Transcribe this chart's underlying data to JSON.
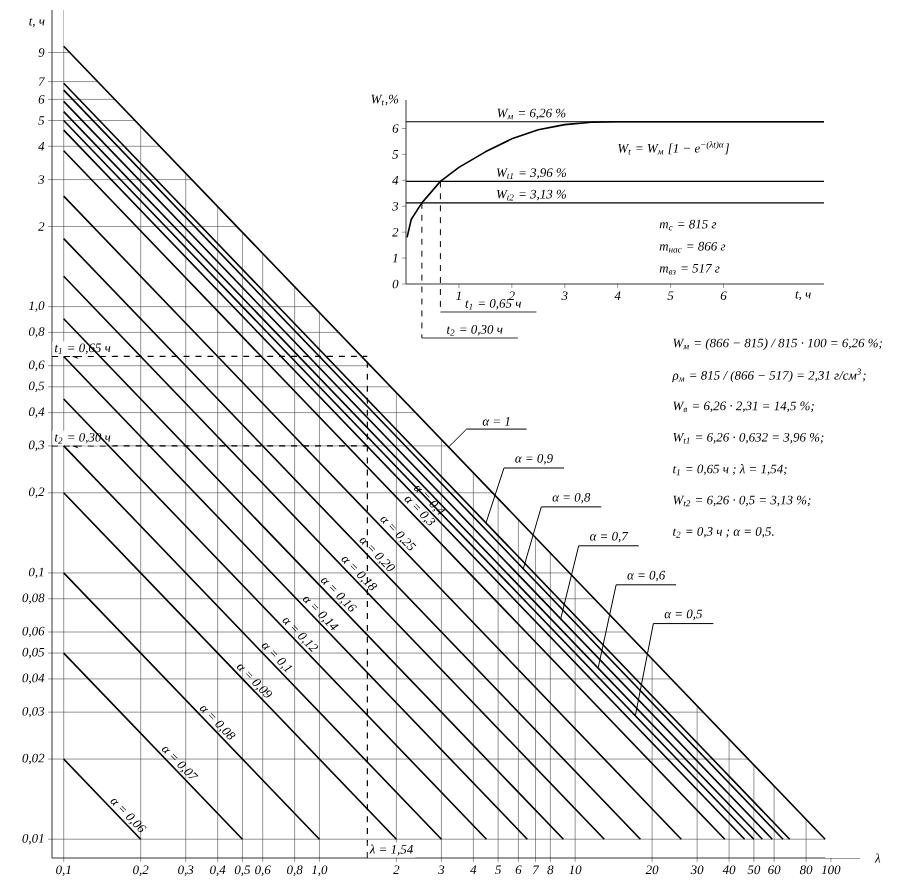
{
  "chart_data": [
    {
      "type": "line",
      "log": "xy",
      "xlabel": "λ",
      "ylabel": "t, ч",
      "xlim": [
        0.09,
        130
      ],
      "ylim": [
        0.0085,
        13
      ],
      "grid": true,
      "marker": "none",
      "line_style": "solid",
      "xticks": [
        {
          "value": 0.1,
          "label": "0,1"
        },
        {
          "value": 0.2,
          "label": "0,2"
        },
        {
          "value": 0.3,
          "label": "0,3"
        },
        {
          "value": 0.4,
          "label": "0,4"
        },
        {
          "value": 0.5,
          "label": "0,5"
        },
        {
          "value": 0.6,
          "label": "0,6"
        },
        {
          "value": 0.8,
          "label": "0,8"
        },
        {
          "value": 1.0,
          "label": "1,0"
        },
        2,
        3,
        4,
        5,
        6,
        7,
        8,
        10,
        20,
        30,
        40,
        50,
        60,
        80,
        100
      ],
      "yticks": [
        {
          "value": 0.01,
          "label": "0,01"
        },
        {
          "value": 0.02,
          "label": "0,02"
        },
        {
          "value": 0.03,
          "label": "0,03"
        },
        {
          "value": 0.04,
          "label": "0,04"
        },
        {
          "value": 0.05,
          "label": "0,05"
        },
        {
          "value": 0.06,
          "label": "0,06"
        },
        {
          "value": 0.08,
          "label": "0,08"
        },
        {
          "value": 0.1,
          "label": "0,1"
        },
        {
          "value": 0.2,
          "label": "0,2"
        },
        {
          "value": 0.3,
          "label": "0,3"
        },
        {
          "value": 0.4,
          "label": "0,4"
        },
        {
          "value": 0.5,
          "label": "0,5"
        },
        {
          "value": 0.6,
          "label": "0,6"
        },
        {
          "value": 0.8,
          "label": "0,8"
        },
        {
          "value": 1.0,
          "label": "1,0"
        },
        2,
        3,
        4,
        5,
        6,
        7,
        9
      ],
      "series": [
        {
          "color": "#000000",
          "x": [
            0.1,
            95
          ],
          "values": [
            9.5,
            0.01
          ]
        },
        {
          "color": "#000000",
          "x": [
            0.1,
            69
          ],
          "values": [
            6.9,
            0.01
          ]
        },
        {
          "color": "#000000",
          "x": [
            0.1,
            65
          ],
          "values": [
            6.5,
            0.01
          ]
        },
        {
          "color": "#000000",
          "x": [
            0.1,
            59
          ],
          "values": [
            5.9,
            0.01
          ]
        },
        {
          "color": "#000000",
          "x": [
            0.1,
            54
          ],
          "values": [
            5.4,
            0.01
          ]
        },
        {
          "color": "#000000",
          "x": [
            0.1,
            50
          ],
          "values": [
            5.0,
            0.01
          ]
        },
        {
          "color": "#000000",
          "x": [
            0.1,
            46
          ],
          "values": [
            4.6,
            0.01
          ]
        },
        {
          "color": "#000000",
          "x": [
            0.1,
            38.5
          ],
          "values": [
            3.85,
            0.01
          ]
        },
        {
          "color": "#000000",
          "x": [
            0.1,
            26
          ],
          "values": [
            2.6,
            0.01
          ]
        },
        {
          "color": "#000000",
          "x": [
            0.1,
            18
          ],
          "values": [
            1.8,
            0.01
          ]
        },
        {
          "color": "#000000",
          "x": [
            0.1,
            13
          ],
          "values": [
            1.3,
            0.01
          ]
        },
        {
          "color": "#000000",
          "x": [
            0.1,
            9
          ],
          "values": [
            0.9,
            0.01
          ]
        },
        {
          "color": "#000000",
          "x": [
            0.1,
            6.5
          ],
          "values": [
            0.65,
            0.01
          ]
        },
        {
          "color": "#000000",
          "x": [
            0.1,
            4.5
          ],
          "values": [
            0.45,
            0.01
          ]
        },
        {
          "color": "#000000",
          "x": [
            0.1,
            3
          ],
          "values": [
            0.3,
            0.01
          ]
        },
        {
          "color": "#000000",
          "x": [
            0.1,
            2
          ],
          "values": [
            0.2,
            0.01
          ]
        },
        {
          "color": "#000000",
          "x": [
            0.1,
            1
          ],
          "values": [
            0.1,
            0.01
          ]
        },
        {
          "color": "#000000",
          "x": [
            0.1,
            0.5
          ],
          "values": [
            0.05,
            0.01
          ]
        },
        {
          "color": "#000000",
          "x": [
            0.1,
            0.2
          ],
          "values": [
            0.02,
            0.01
          ]
        }
      ],
      "ref_lines": [
        {
          "axis": "y",
          "value": 0.65,
          "label": "t$_{1}$ = 0,65 ч",
          "line_style": "dashed"
        },
        {
          "axis": "y",
          "value": 0.3,
          "label": "t$_{2}$ = 0,30 ч",
          "line_style": "dashed"
        },
        {
          "axis": "x",
          "value": 1.54,
          "label": "λ = 1,54",
          "line_style": "dashed"
        }
      ],
      "annotations": [
        "W$_{м}$ = (866 − 815) / 815 · 100 = 6,26 %;",
        "ρ$_{м}$ = 815 / (866 − 517) = 2,31 г/см$^{3}$;",
        "W$_{в}$ = 6,26 · 2,31 = 14,5 %;",
        "W$_{t1}$ = 6,26 · 0,632 = 3,96 %;",
        "t$_{1}$ = 0,65 ч ;  λ = 1,54;",
        "W$_{t2}$ = 6,26 · 0,5 = 3,13 %;",
        "t$_{2}$ = 0,3 ч ;  α = 0,5.",
        {
          "text": "α = 1",
          "x": 3.2,
          "y": 0.297
        },
        {
          "text": "α = 0,9",
          "x": 4.48,
          "y": 0.154
        },
        {
          "text": "α = 0,8",
          "x": 6.27,
          "y": 0.1037
        },
        {
          "text": "α = 0,7",
          "x": 8.78,
          "y": 0.0672
        },
        {
          "text": "α = 0,6",
          "x": 12.3,
          "y": 0.0439
        },
        {
          "text": "α = 0,5",
          "x": 17.2,
          "y": 0.0291
        },
        {
          "text": "α = 0,4",
          "x": 2.56,
          "y": 0.18
        },
        {
          "text": "α = 0,3",
          "x": 2.35,
          "y": 0.164
        },
        {
          "text": "α = 0,25",
          "x": 1.93,
          "y": 0.135
        },
        {
          "text": "α = 0,20",
          "x": 1.6,
          "y": 0.1125
        },
        {
          "text": "α = 0,18",
          "x": 1.36,
          "y": 0.0956
        },
        {
          "text": "α = 0,16",
          "x": 1.13,
          "y": 0.0796
        },
        {
          "text": "α = 0,14",
          "x": 0.96,
          "y": 0.0677
        },
        {
          "text": "α = 0,12",
          "x": 0.8,
          "y": 0.0563
        },
        {
          "text": "α = 0,1",
          "x": 0.65,
          "y": 0.0462
        },
        {
          "text": "α = 0,09",
          "x": 0.53,
          "y": 0.0377
        },
        {
          "text": "α = 0,08",
          "x": 0.38,
          "y": 0.0263
        },
        {
          "text": "α = 0,07",
          "x": 0.27,
          "y": 0.0185
        },
        {
          "text": "α = 0,06",
          "x": 0.17,
          "y": 0.0118
        }
      ]
    },
    {
      "type": "line",
      "xlabel": "t, ч",
      "ylabel": "W$_{t}$,%",
      "xlim": [
        0,
        7.9
      ],
      "ylim": [
        0,
        7.1
      ],
      "xticks": [
        1,
        2,
        3,
        4,
        5,
        6
      ],
      "yticks": [
        0,
        1,
        2,
        3,
        4,
        5,
        6
      ],
      "marker": "none",
      "line_style": "solid",
      "series": [
        {
          "color": "#000000",
          "x": [
            0.02,
            0.1,
            0.3,
            0.65,
            1,
            1.5,
            2,
            2.5,
            3,
            3.5,
            4,
            7.9
          ],
          "values": [
            1.8,
            2.5,
            3.13,
            3.96,
            4.5,
            5.1,
            5.6,
            5.95,
            6.15,
            6.24,
            6.26,
            6.26
          ]
        }
      ],
      "ref_lines": [
        {
          "axis": "y",
          "value": 6.26,
          "label": "W$_{м}$ = 6,26 %",
          "line_style": "solid"
        },
        {
          "axis": "y",
          "value": 3.96,
          "label": "W$_{t1}$ = 3,96 %",
          "line_style": "solid"
        },
        {
          "axis": "y",
          "value": 3.13,
          "label": "W$_{t2}$ = 3,13 %",
          "line_style": "solid"
        },
        {
          "axis": "x",
          "value": 0.65,
          "label": "t$_{1}$ = 0,65 ч",
          "line_style": "dashed"
        },
        {
          "axis": "x",
          "value": 0.3,
          "label": "t$_{2}$ = 0,30 ч",
          "line_style": "dashed"
        }
      ],
      "annotations": [
        "W$_{t}$ = W$_{м}$ [1 − e$^{−(λt)α}$]",
        "m$_{с}$ = 815 г",
        "m$_{нас}$ = 866 г",
        "m$_{вз}$ = 517 г"
      ]
    }
  ]
}
